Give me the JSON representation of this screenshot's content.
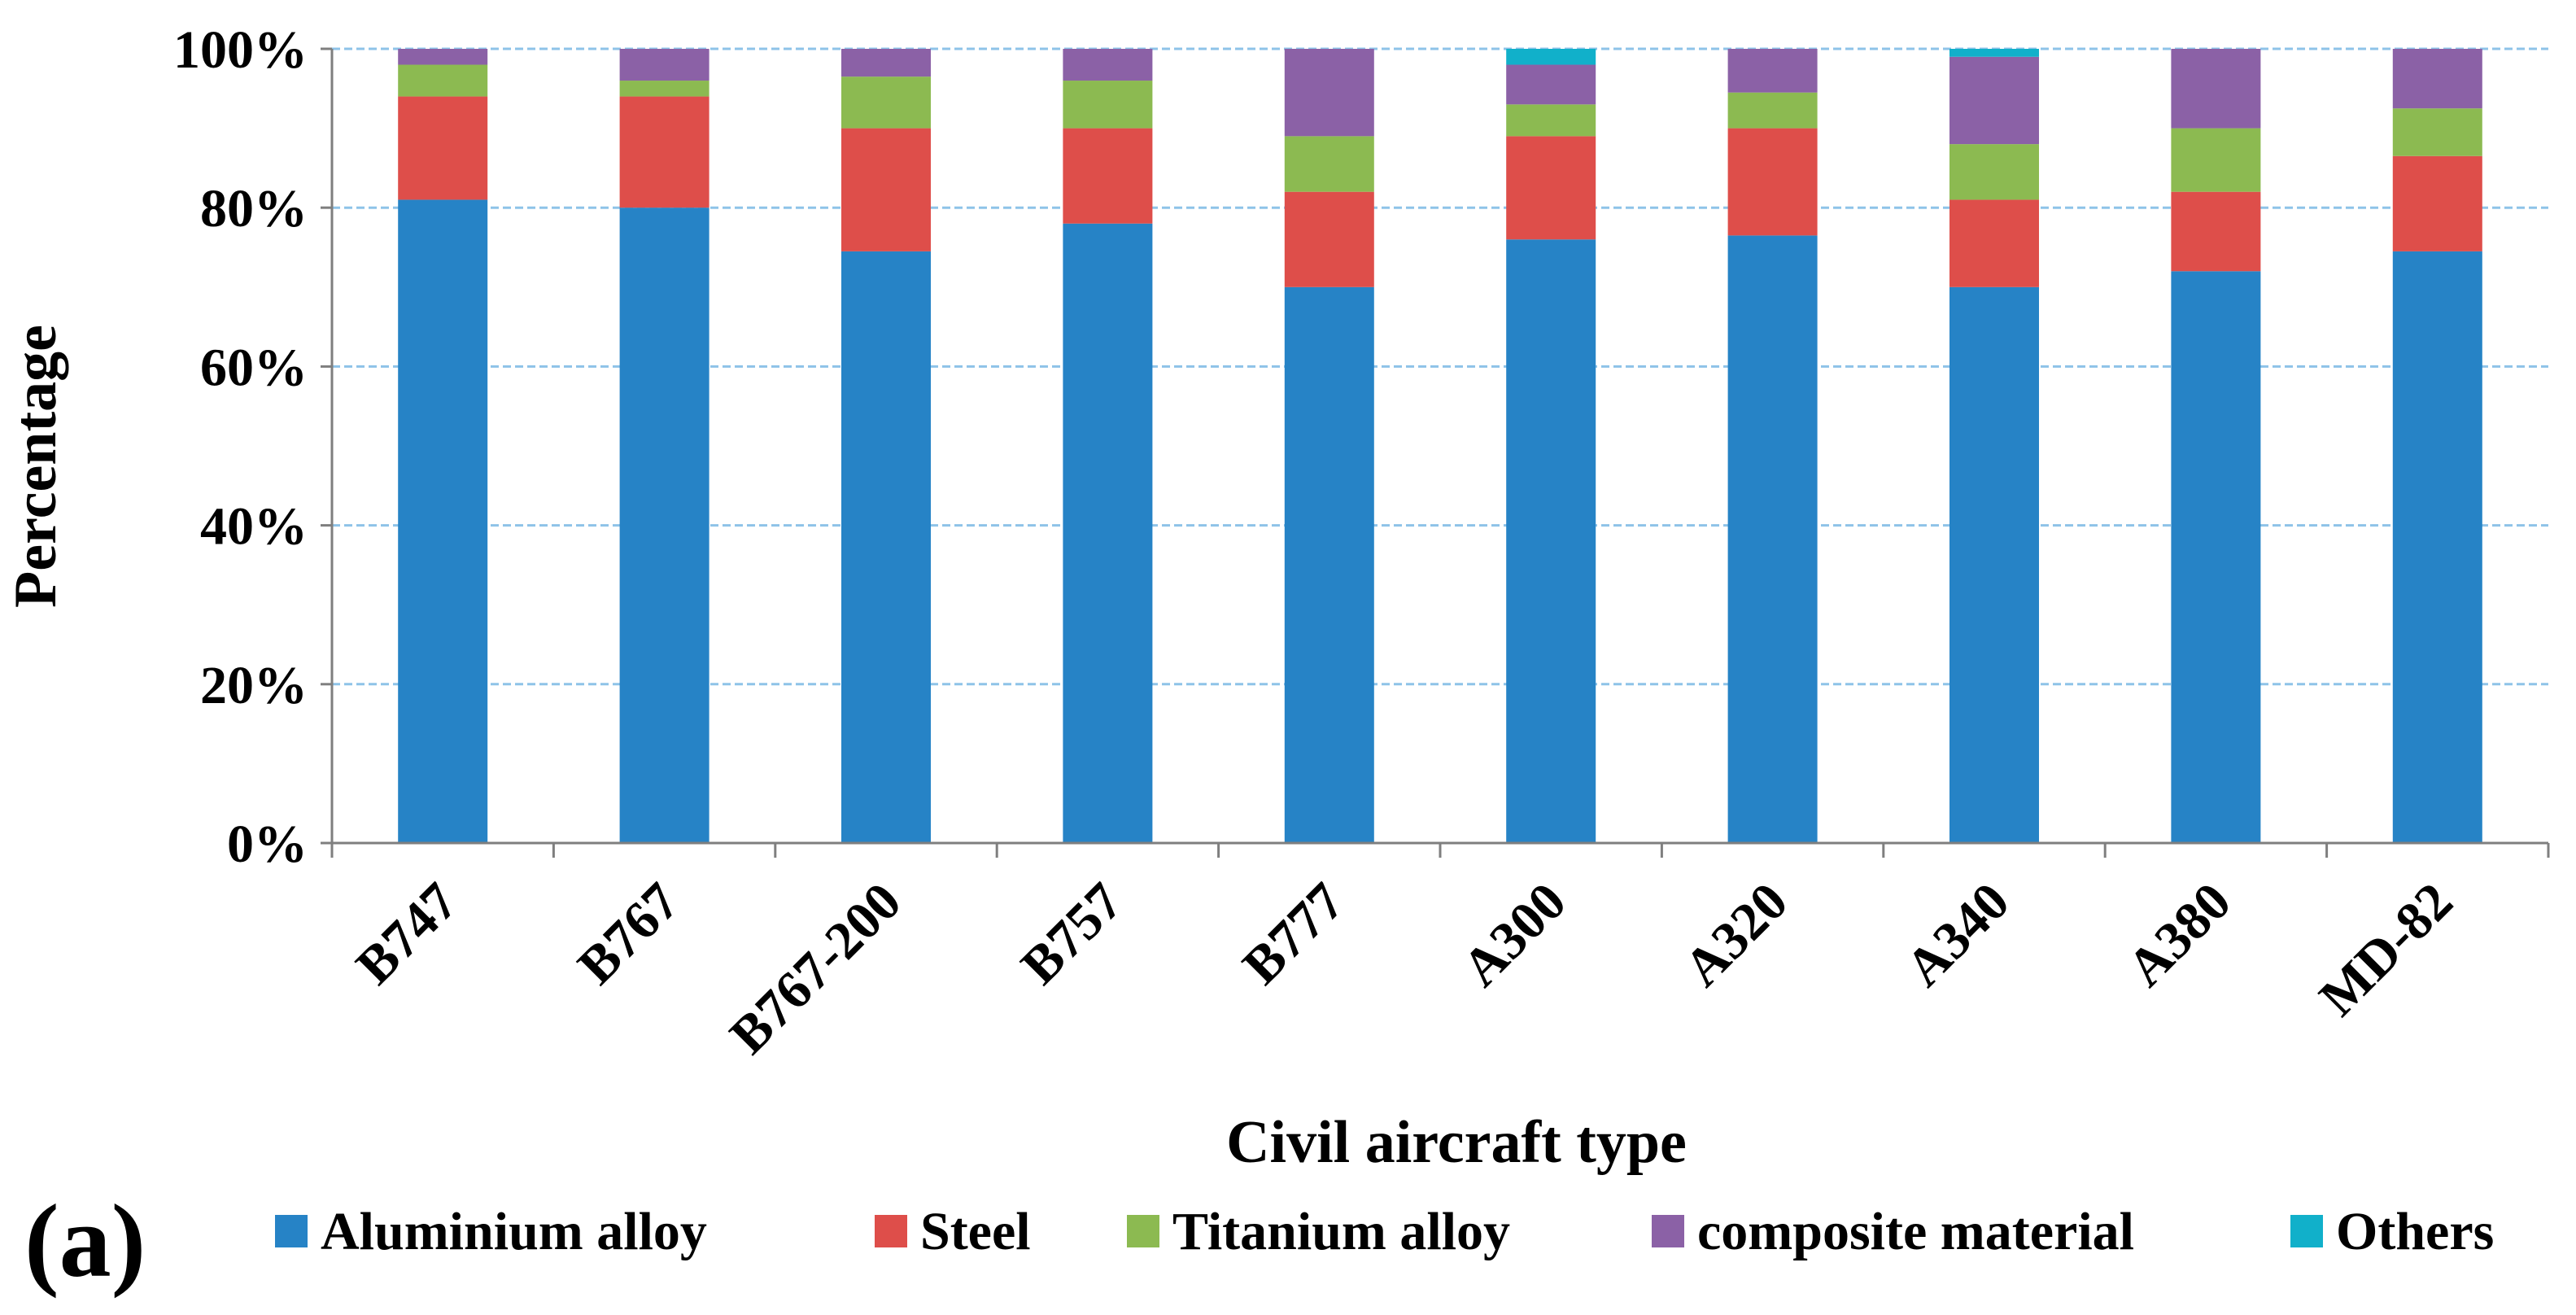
{
  "chart_data": {
    "type": "bar",
    "stacked": true,
    "title": "",
    "xlabel": "Civil aircraft type",
    "ylabel": "Percentage",
    "ylim": [
      0,
      100
    ],
    "yticks": [
      "0%",
      "20%",
      "40%",
      "60%",
      "80%",
      "100%"
    ],
    "grid": true,
    "legend_position": "bottom",
    "panel_label": "(a)",
    "categories": [
      "B747",
      "B767",
      "B767-200",
      "B757",
      "B777",
      "A300",
      "A320",
      "A340",
      "A380",
      "MD-82"
    ],
    "series": [
      {
        "name": "Aluminium alloy",
        "color": "#2683C6",
        "values": [
          81,
          80,
          74.5,
          78,
          70,
          76,
          76.5,
          70,
          72,
          74.5
        ]
      },
      {
        "name": "Steel",
        "color": "#DE4E4A",
        "values": [
          13,
          14,
          15.5,
          12,
          12,
          13,
          13.5,
          11,
          10,
          12
        ]
      },
      {
        "name": "Titanium alloy",
        "color": "#8CBA51",
        "values": [
          4,
          2,
          6.5,
          6,
          7,
          4,
          4.5,
          7,
          8,
          6
        ]
      },
      {
        "name": "composite material",
        "color": "#8B61A6",
        "values": [
          2,
          4,
          3.5,
          4,
          11,
          5,
          5.5,
          11,
          10,
          7.5
        ]
      },
      {
        "name": "Others",
        "color": "#11B0CA",
        "values": [
          0,
          0,
          0,
          0,
          0,
          2,
          0,
          1,
          0,
          0
        ]
      }
    ]
  }
}
